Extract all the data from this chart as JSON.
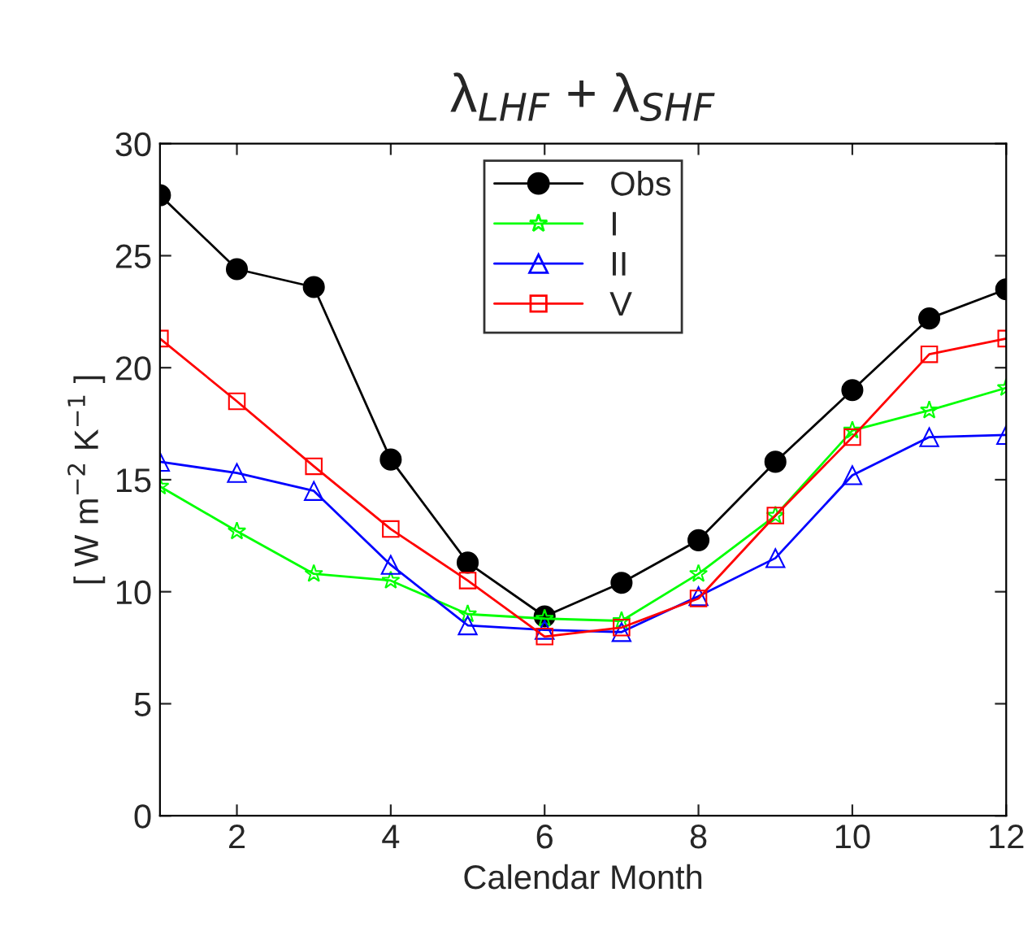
{
  "chart_data": {
    "type": "line",
    "title": "λ$_{LHF}$ + λ$_{SHF}$",
    "xlabel": "Calendar Month",
    "ylabel": "[ W m$^{−2}$ K$^{−1}$ ]",
    "x": [
      1,
      2,
      3,
      4,
      5,
      6,
      7,
      8,
      9,
      10,
      11,
      12
    ],
    "series": [
      {
        "name": "Obs",
        "color": "#000000",
        "marker": "circle",
        "values": [
          27.7,
          24.4,
          23.6,
          15.9,
          11.3,
          8.9,
          10.4,
          12.3,
          15.8,
          19.0,
          22.2,
          23.5
        ]
      },
      {
        "name": "I",
        "color": "#00ff00",
        "marker": "star",
        "values": [
          14.7,
          12.7,
          10.8,
          10.5,
          9.0,
          8.8,
          8.7,
          10.8,
          13.4,
          17.2,
          18.1,
          19.1
        ]
      },
      {
        "name": "II",
        "color": "#0000ff",
        "marker": "triangle",
        "values": [
          15.8,
          15.3,
          14.5,
          11.2,
          8.5,
          8.3,
          8.2,
          9.8,
          11.5,
          15.2,
          16.9,
          17.0
        ]
      },
      {
        "name": "V",
        "color": "#ff0000",
        "marker": "square",
        "values": [
          21.3,
          18.5,
          15.6,
          12.8,
          10.5,
          8.0,
          8.4,
          9.7,
          13.4,
          16.9,
          20.6,
          21.3
        ]
      }
    ],
    "xlim": [
      1,
      12
    ],
    "xticks": [
      2,
      4,
      6,
      8,
      10,
      12
    ],
    "ylim": [
      0,
      30
    ],
    "yticks": [
      0,
      5,
      10,
      15,
      20,
      25,
      30
    ],
    "grid": false,
    "legend": "top",
    "line_style": "solid"
  }
}
